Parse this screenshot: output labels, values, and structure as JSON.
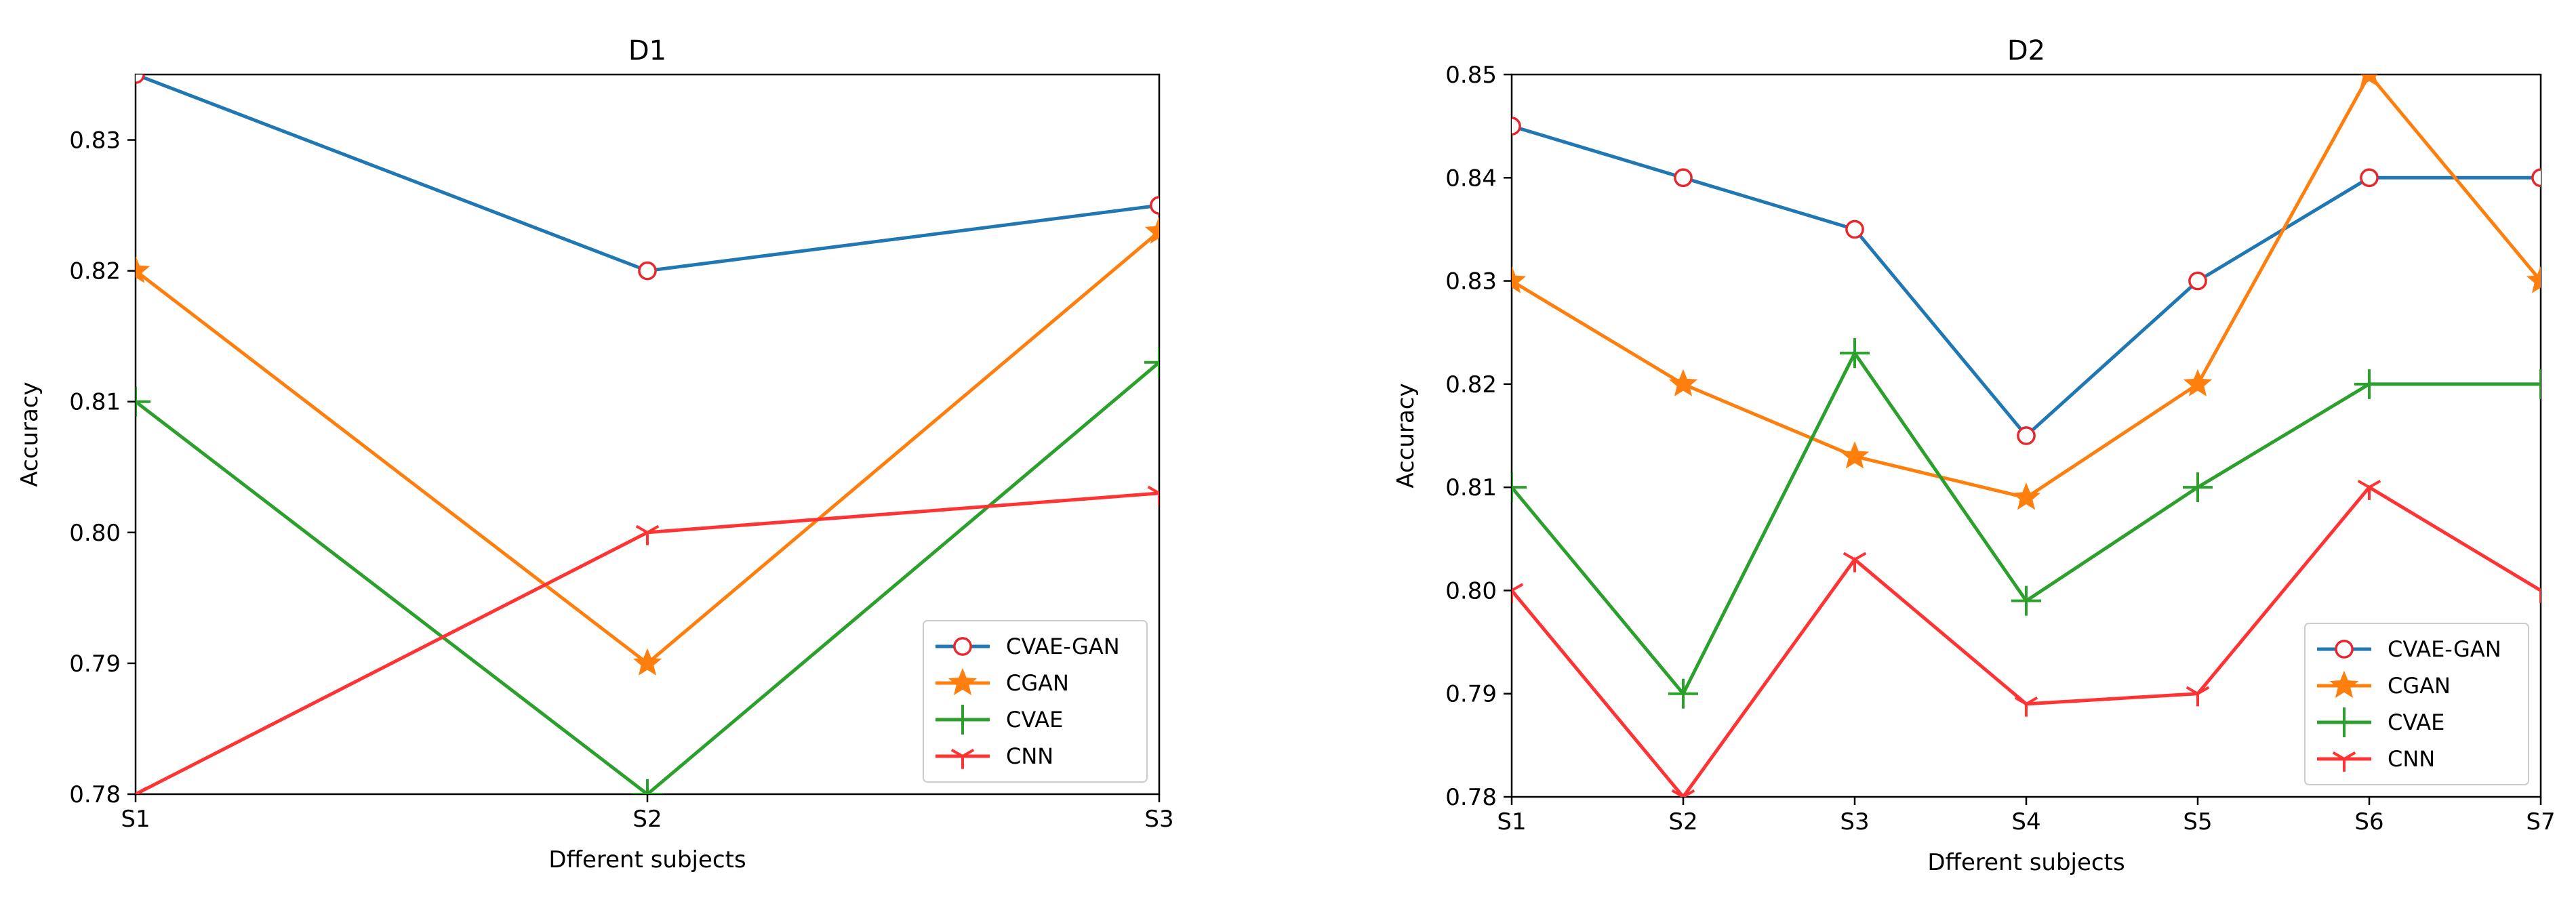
{
  "chart_data": [
    {
      "type": "line",
      "title": "D1",
      "xlabel": "Dfferent subjects",
      "ylabel": "Accuracy",
      "categories": [
        "S1",
        "S2",
        "S3"
      ],
      "ylim": [
        0.78,
        0.835
      ],
      "yticks": [
        "0.78",
        "0.79",
        "0.80",
        "0.81",
        "0.82",
        "0.83"
      ],
      "legend_position": "lower-right",
      "series": [
        {
          "name": "CVAE-GAN",
          "color": "#1f77b4",
          "marker": "circle-open",
          "values": [
            0.835,
            0.82,
            0.825
          ]
        },
        {
          "name": "CGAN",
          "color": "#ff7f0e",
          "marker": "star",
          "values": [
            0.82,
            0.79,
            0.823
          ]
        },
        {
          "name": "CVAE",
          "color": "#2ca02c",
          "marker": "plus",
          "values": [
            0.81,
            0.78,
            0.813
          ]
        },
        {
          "name": "CNN",
          "color": "#ff3333",
          "marker": "tri",
          "values": [
            0.78,
            0.8,
            0.803
          ]
        }
      ]
    },
    {
      "type": "line",
      "title": "D2",
      "xlabel": "Dfferent subjects",
      "ylabel": "Accuracy",
      "categories": [
        "S1",
        "S2",
        "S3",
        "S4",
        "S5",
        "S6",
        "S7"
      ],
      "ylim": [
        0.78,
        0.85
      ],
      "yticks": [
        "0.78",
        "0.79",
        "0.80",
        "0.81",
        "0.82",
        "0.83",
        "0.84",
        "0.85"
      ],
      "legend_position": "lower-right",
      "series": [
        {
          "name": "CVAE-GAN",
          "color": "#1f77b4",
          "marker": "circle-open",
          "values": [
            0.845,
            0.84,
            0.835,
            0.815,
            0.83,
            0.84,
            0.84
          ]
        },
        {
          "name": "CGAN",
          "color": "#ff7f0e",
          "marker": "star",
          "values": [
            0.83,
            0.82,
            0.813,
            0.809,
            0.82,
            0.85,
            0.83
          ]
        },
        {
          "name": "CVAE",
          "color": "#2ca02c",
          "marker": "plus",
          "values": [
            0.81,
            0.79,
            0.823,
            0.799,
            0.81,
            0.82,
            0.82
          ]
        },
        {
          "name": "CNN",
          "color": "#ff3333",
          "marker": "tri",
          "values": [
            0.8,
            0.78,
            0.803,
            0.789,
            0.79,
            0.81,
            0.8
          ]
        }
      ]
    }
  ]
}
